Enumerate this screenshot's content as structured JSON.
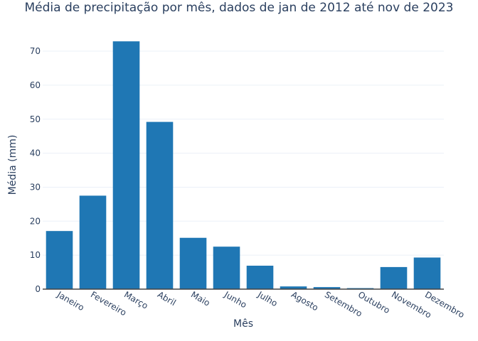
{
  "chart_data": {
    "type": "bar",
    "title": "Média de precipitação por mês, dados de jan de 2012 até nov de 2023",
    "xlabel": "Mês",
    "ylabel": "Média (mm)",
    "categories": [
      "Janeiro",
      "Fevereiro",
      "Março",
      "Abril",
      "Maio",
      "Junho",
      "Julho",
      "Agosto",
      "Setembro",
      "Outubro",
      "Novembro",
      "Dezembro"
    ],
    "values": [
      17.1,
      27.5,
      72.9,
      49.2,
      15.1,
      12.5,
      6.9,
      0.8,
      0.6,
      0.3,
      6.5,
      9.3
    ],
    "ylim": [
      0,
      76.7
    ],
    "yticks": [
      0,
      10,
      20,
      30,
      40,
      50,
      60,
      70
    ],
    "grid": true,
    "bar_color": "#1f77b4"
  }
}
